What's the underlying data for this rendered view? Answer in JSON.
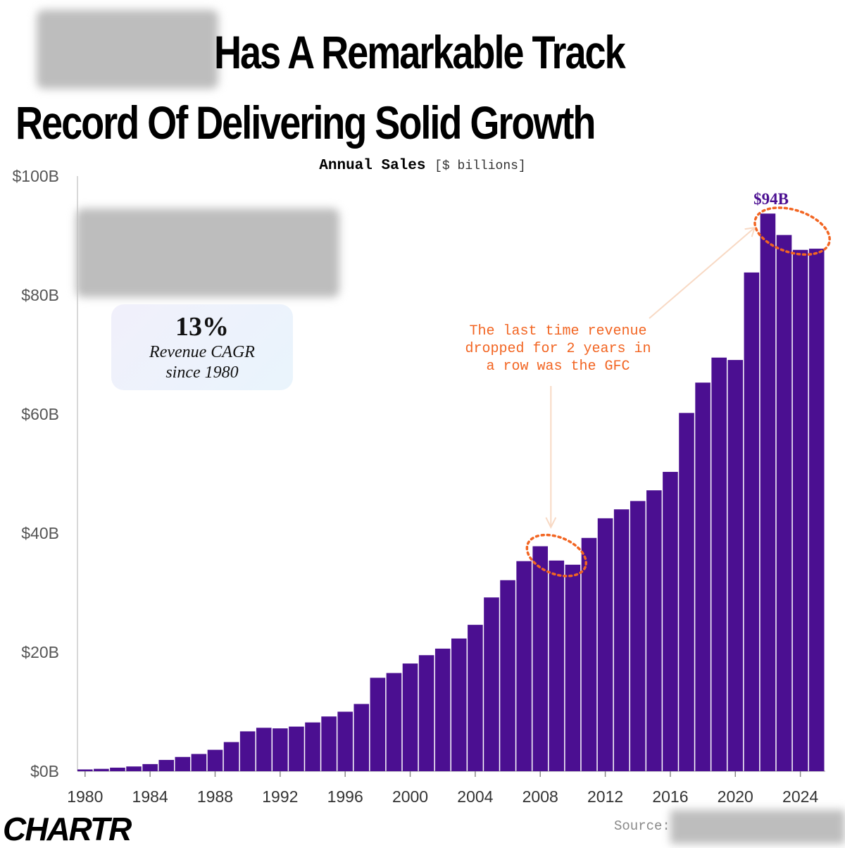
{
  "title": {
    "line1": "Has A Remarkable Track",
    "line2": "Record Of Delivering Solid Growth"
  },
  "subtitle": {
    "bold": "Annual Sales",
    "unit": "[$ billions]"
  },
  "cagr": {
    "value": "13%",
    "line1": "Revenue CAGR",
    "line2": "since 1980"
  },
  "annotation": {
    "line1": "The last time revenue",
    "line2": "dropped for 2 years in",
    "line3": "a row was the GFC"
  },
  "peak_label": "$94B",
  "logo": "CHARTR",
  "source_label": "Source:",
  "colors": {
    "bar": "#4b0f91",
    "annotation": "#f26522",
    "axis": "#cccccc"
  },
  "chart_data": {
    "type": "bar",
    "title": "Annual Sales",
    "ylabel": "[$ billions]",
    "xlabel": "",
    "ylim": [
      0,
      100
    ],
    "y_ticks": [
      "$0B",
      "$20B",
      "$40B",
      "$60B",
      "$80B",
      "$100B"
    ],
    "x_ticks": [
      "1980",
      "1984",
      "1988",
      "1992",
      "1996",
      "2000",
      "2004",
      "2008",
      "2012",
      "2016",
      "2020",
      "2024"
    ],
    "categories": [
      1980,
      1981,
      1982,
      1983,
      1984,
      1985,
      1986,
      1987,
      1988,
      1989,
      1990,
      1991,
      1992,
      1993,
      1994,
      1995,
      1996,
      1997,
      1998,
      1999,
      2000,
      2001,
      2002,
      2003,
      2004,
      2005,
      2006,
      2007,
      2008,
      2009,
      2010,
      2011,
      2012,
      2013,
      2014,
      2015,
      2016,
      2017,
      2018,
      2019,
      2020,
      2021,
      2022,
      2023,
      2024,
      2025
    ],
    "values": [
      0.3,
      0.4,
      0.6,
      0.8,
      1.2,
      1.9,
      2.4,
      2.9,
      3.6,
      4.9,
      6.7,
      7.3,
      7.2,
      7.5,
      8.2,
      9.2,
      10.0,
      11.3,
      15.7,
      16.5,
      18.1,
      19.5,
      20.6,
      22.3,
      24.6,
      29.2,
      32.1,
      35.3,
      37.8,
      35.4,
      34.7,
      39.2,
      42.5,
      44.0,
      45.4,
      47.2,
      50.3,
      60.2,
      65.3,
      69.5,
      69.1,
      83.8,
      93.7,
      90.1,
      87.6,
      87.8
    ],
    "annotations": [
      {
        "text": "$94B",
        "x": 2022,
        "y": 93.7
      },
      {
        "text": "The last time revenue dropped for 2 years in a row was the GFC",
        "x_range": [
          2008,
          2010
        ]
      }
    ],
    "grid": false,
    "legend": "none"
  }
}
